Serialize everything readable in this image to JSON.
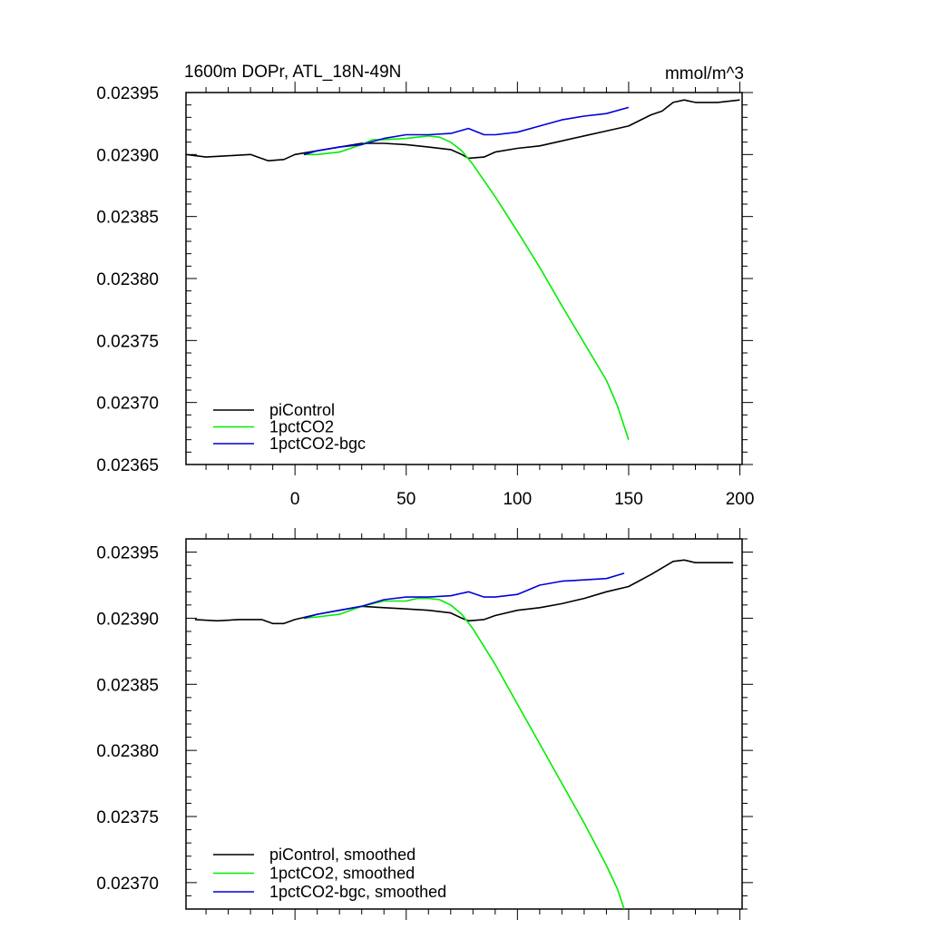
{
  "chart_data": [
    {
      "type": "line",
      "title": "1600m DOPr, ATL_18N-49N",
      "units": "mmol/m^3",
      "xlim": [
        -49,
        201
      ],
      "ylim": [
        0.02365,
        0.02395
      ],
      "x_ticks": [
        0,
        50,
        100,
        150,
        200
      ],
      "x_tick_labels": [
        "0",
        "50",
        "100",
        "150",
        "200"
      ],
      "y_ticks": [
        0.02365,
        0.0237,
        0.02375,
        0.0238,
        0.02385,
        0.0239,
        0.02395
      ],
      "y_tick_labels": [
        "0.02365",
        "0.02370",
        "0.02375",
        "0.02380",
        "0.02385",
        "0.02390",
        "0.02395"
      ],
      "legend_position": "bottom-left",
      "series": [
        {
          "name": "piControl",
          "color": "#000000",
          "x": [
            -49,
            -40,
            -30,
            -20,
            -12,
            -5,
            0,
            10,
            20,
            30,
            40,
            50,
            60,
            70,
            75,
            78,
            85,
            90,
            100,
            110,
            120,
            130,
            140,
            150,
            160,
            165,
            170,
            175,
            180,
            190,
            200
          ],
          "values": [
            0.0239,
            0.023898,
            0.023899,
            0.0239,
            0.023895,
            0.023896,
            0.0239,
            0.023903,
            0.023906,
            0.023909,
            0.023909,
            0.023908,
            0.023906,
            0.023904,
            0.0239,
            0.023897,
            0.023898,
            0.023902,
            0.023905,
            0.023907,
            0.023911,
            0.023915,
            0.023919,
            0.023923,
            0.023932,
            0.023935,
            0.023942,
            0.023944,
            0.023942,
            0.023942,
            0.023944
          ]
        },
        {
          "name": "1pctCO2",
          "color": "#00ee00",
          "x": [
            4,
            10,
            20,
            30,
            35,
            40,
            50,
            55,
            60,
            65,
            70,
            75,
            80,
            90,
            100,
            110,
            120,
            130,
            140,
            145,
            150
          ],
          "values": [
            0.0239,
            0.0239,
            0.023902,
            0.023908,
            0.023912,
            0.023912,
            0.023913,
            0.023914,
            0.023915,
            0.023914,
            0.02391,
            0.023903,
            0.023892,
            0.023866,
            0.023838,
            0.023809,
            0.023778,
            0.023748,
            0.023718,
            0.023697,
            0.02367
          ]
        },
        {
          "name": "1pctCO2-bgc",
          "color": "#0000dd",
          "x": [
            4,
            10,
            20,
            30,
            40,
            50,
            60,
            70,
            78,
            85,
            90,
            100,
            110,
            120,
            130,
            140,
            150
          ],
          "values": [
            0.0239,
            0.023903,
            0.023906,
            0.023908,
            0.023913,
            0.023916,
            0.023916,
            0.023917,
            0.023921,
            0.023916,
            0.023916,
            0.023918,
            0.023923,
            0.023928,
            0.023931,
            0.023933,
            0.023938
          ]
        }
      ]
    },
    {
      "type": "line",
      "title": "",
      "xlim": [
        -49,
        201
      ],
      "ylim": [
        0.02368,
        0.02396
      ],
      "x_ticks": [
        0,
        50,
        100,
        150,
        200
      ],
      "y_ticks": [
        0.0237,
        0.02375,
        0.0238,
        0.02385,
        0.0239,
        0.02395
      ],
      "y_tick_labels": [
        "0.02370",
        "0.02375",
        "0.02380",
        "0.02385",
        "0.02390",
        "0.02395"
      ],
      "legend_position": "bottom-left",
      "series": [
        {
          "name": "piControl, smoothed",
          "color": "#000000",
          "x": [
            -45,
            -35,
            -25,
            -15,
            -10,
            -5,
            0,
            10,
            20,
            30,
            40,
            50,
            60,
            70,
            75,
            78,
            85,
            90,
            100,
            110,
            120,
            130,
            140,
            150,
            160,
            170,
            175,
            180,
            190,
            197
          ],
          "values": [
            0.023899,
            0.023898,
            0.023899,
            0.023899,
            0.023896,
            0.023896,
            0.023899,
            0.023903,
            0.023906,
            0.023909,
            0.023908,
            0.023907,
            0.023906,
            0.023904,
            0.0239,
            0.023898,
            0.023899,
            0.023902,
            0.023906,
            0.023908,
            0.023911,
            0.023915,
            0.02392,
            0.023924,
            0.023933,
            0.023943,
            0.023944,
            0.023942,
            0.023942,
            0.023942
          ]
        },
        {
          "name": "1pctCO2, smoothed",
          "color": "#00ee00",
          "x": [
            4,
            10,
            20,
            30,
            40,
            50,
            55,
            60,
            65,
            70,
            75,
            80,
            90,
            100,
            110,
            120,
            130,
            140,
            145,
            148
          ],
          "values": [
            0.0239,
            0.023901,
            0.023903,
            0.023909,
            0.023913,
            0.023913,
            0.023915,
            0.023915,
            0.023914,
            0.02391,
            0.023903,
            0.023892,
            0.023865,
            0.023835,
            0.023805,
            0.023775,
            0.023745,
            0.023713,
            0.023695,
            0.02368
          ]
        },
        {
          "name": "1pctCO2-bgc, smoothed",
          "color": "#0000dd",
          "x": [
            4,
            10,
            20,
            30,
            40,
            50,
            60,
            70,
            78,
            85,
            90,
            100,
            110,
            120,
            130,
            140,
            148
          ],
          "values": [
            0.0239,
            0.023903,
            0.023906,
            0.023909,
            0.023914,
            0.023916,
            0.023916,
            0.023917,
            0.02392,
            0.023916,
            0.023916,
            0.023918,
            0.023925,
            0.023928,
            0.023929,
            0.02393,
            0.023934
          ]
        }
      ]
    }
  ]
}
